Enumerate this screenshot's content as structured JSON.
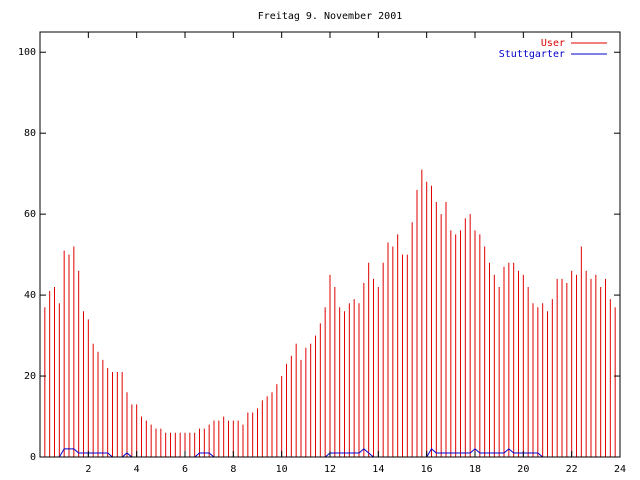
{
  "chart_data": {
    "type": "line",
    "title": "Freitag 9. November 2001",
    "x": [
      0,
      0.2,
      0.4,
      0.6,
      0.8,
      1,
      1.2,
      1.4,
      1.6,
      1.8,
      2,
      2.2,
      2.4,
      2.6,
      2.8,
      3,
      3.2,
      3.4,
      3.6,
      3.8,
      4,
      4.2,
      4.4,
      4.6,
      4.8,
      5,
      5.2,
      5.4,
      5.6,
      5.8,
      6,
      6.2,
      6.4,
      6.6,
      6.8,
      7,
      7.2,
      7.4,
      7.6,
      7.8,
      8,
      8.2,
      8.4,
      8.6,
      8.8,
      9,
      9.2,
      9.4,
      9.6,
      9.8,
      10,
      10.2,
      10.4,
      10.6,
      10.8,
      11,
      11.2,
      11.4,
      11.6,
      11.8,
      12,
      12.2,
      12.4,
      12.6,
      12.8,
      13,
      13.2,
      13.4,
      13.6,
      13.8,
      14,
      14.2,
      14.4,
      14.6,
      14.8,
      15,
      15.2,
      15.4,
      15.6,
      15.8,
      16,
      16.2,
      16.4,
      16.6,
      16.8,
      17,
      17.2,
      17.4,
      17.6,
      17.8,
      18,
      18.2,
      18.4,
      18.6,
      18.8,
      19,
      19.2,
      19.4,
      19.6,
      19.8,
      20,
      20.2,
      20.4,
      20.6,
      20.8,
      21,
      21.2,
      21.4,
      21.6,
      21.8,
      22,
      22.2,
      22.4,
      22.6,
      22.8,
      23,
      23.2,
      23.4,
      23.6,
      23.8
    ],
    "series": [
      {
        "name": "User",
        "color": "#e00000",
        "style": "impulses",
        "values": [
          40,
          37,
          41,
          42,
          38,
          51,
          50,
          52,
          46,
          36,
          34,
          28,
          26,
          24,
          22,
          21,
          21,
          21,
          16,
          13,
          13,
          10,
          9,
          8,
          7,
          7,
          6,
          6,
          6,
          6,
          6,
          6,
          6,
          7,
          7,
          8,
          9,
          9,
          10,
          9,
          9,
          9,
          8,
          11,
          11,
          12,
          14,
          15,
          16,
          18,
          20,
          23,
          25,
          28,
          24,
          27,
          28,
          30,
          33,
          37,
          45,
          42,
          37,
          36,
          38,
          39,
          38,
          43,
          48,
          44,
          42,
          48,
          53,
          52,
          55,
          50,
          50,
          58,
          66,
          71,
          68,
          67,
          63,
          60,
          63,
          56,
          55,
          56,
          59,
          60,
          56,
          55,
          52,
          48,
          45,
          42,
          47,
          48,
          48,
          46,
          45,
          42,
          38,
          37,
          38,
          36,
          39,
          44,
          44,
          43,
          46,
          45,
          52,
          46,
          44,
          45,
          42,
          44,
          39,
          37
        ]
      },
      {
        "name": "Stuttgarter",
        "color": "#0000cc",
        "style": "lines",
        "values": [
          0,
          0,
          0,
          0,
          0,
          2,
          2,
          2,
          1,
          1,
          1,
          1,
          1,
          1,
          1,
          0,
          0,
          0,
          1,
          0,
          0,
          0,
          0,
          0,
          0,
          0,
          0,
          0,
          0,
          0,
          0,
          0,
          0,
          1,
          1,
          1,
          0,
          0,
          0,
          0,
          0,
          0,
          0,
          0,
          0,
          0,
          0,
          0,
          0,
          0,
          0,
          0,
          0,
          0,
          0,
          0,
          0,
          0,
          0,
          0,
          1,
          1,
          1,
          1,
          1,
          1,
          1,
          2,
          1,
          0,
          0,
          0,
          0,
          0,
          0,
          0,
          0,
          0,
          0,
          0,
          0,
          2,
          1,
          1,
          1,
          1,
          1,
          1,
          1,
          1,
          2,
          1,
          1,
          1,
          1,
          1,
          1,
          2,
          1,
          1,
          1,
          1,
          1,
          1,
          0,
          0,
          0,
          0,
          0,
          0,
          0,
          0,
          0,
          0,
          0,
          0,
          0,
          0,
          0,
          0
        ]
      }
    ],
    "xlim": [
      0,
      24
    ],
    "xticks": [
      2,
      4,
      6,
      8,
      10,
      12,
      14,
      16,
      18,
      20,
      22,
      24
    ],
    "ylim": [
      0,
      105
    ],
    "yticks": [
      0,
      20,
      40,
      60,
      80,
      100
    ],
    "legend": "top-right"
  }
}
